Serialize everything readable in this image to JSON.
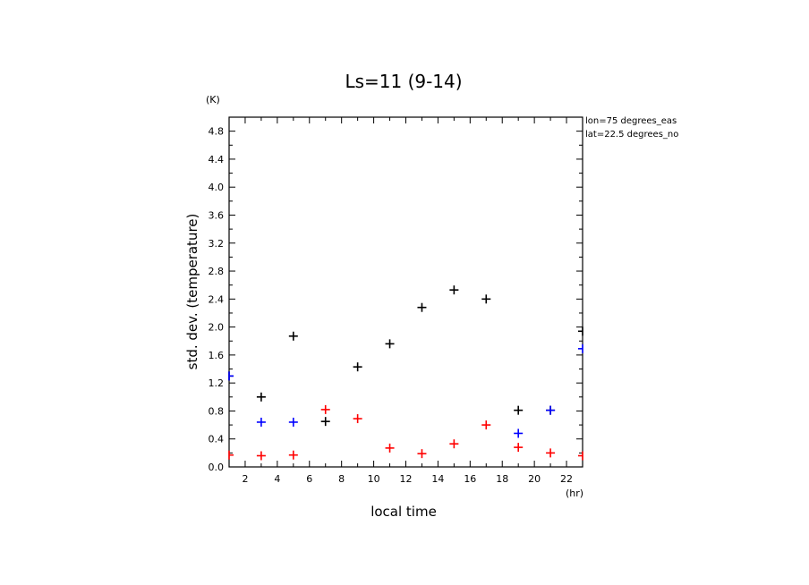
{
  "chart_data": {
    "type": "scatter",
    "title": "Ls=11 (9-14)",
    "xlabel": "local time",
    "ylabel": "std. dev. (temperature)",
    "x_unit": "(hr)",
    "y_unit": "(K)",
    "xlim": [
      1,
      23
    ],
    "ylim": [
      0,
      5
    ],
    "x_ticks": [
      2,
      4,
      6,
      8,
      10,
      12,
      14,
      16,
      18,
      20,
      22
    ],
    "y_ticks": [
      0.0,
      0.4,
      0.8,
      1.2,
      1.6,
      2.0,
      2.4,
      2.8,
      3.2,
      3.6,
      4.0,
      4.4,
      4.8
    ],
    "y_tick_labels": [
      "0.0",
      "0.4",
      "0.8",
      "1.2",
      "1.6",
      "2.0",
      "2.4",
      "2.8",
      "3.2",
      "3.6",
      "4.0",
      "4.4",
      "4.8"
    ],
    "info": [
      "lon=75 degrees_eas",
      "lat=22.5 degrees_no"
    ],
    "series": [
      {
        "color": "#000000",
        "x": [
          1,
          3,
          5,
          7,
          9,
          11,
          13,
          15,
          17,
          19,
          21,
          23
        ],
        "y": [
          1.3,
          1.0,
          1.87,
          0.65,
          1.43,
          1.76,
          2.28,
          2.53,
          2.4,
          0.81,
          0.81,
          1.94
        ]
      },
      {
        "color": "#0000ff",
        "x": [
          1,
          3,
          5,
          19,
          21,
          23
        ],
        "y": [
          1.3,
          0.64,
          0.64,
          0.48,
          0.81,
          1.69
        ]
      },
      {
        "color": "#ff0000",
        "x": [
          1,
          3,
          5,
          7,
          9,
          11,
          13,
          15,
          17,
          19,
          21,
          23
        ],
        "y": [
          0.17,
          0.16,
          0.17,
          0.82,
          0.69,
          0.27,
          0.19,
          0.33,
          0.6,
          0.28,
          0.2,
          0.16
        ]
      }
    ]
  }
}
